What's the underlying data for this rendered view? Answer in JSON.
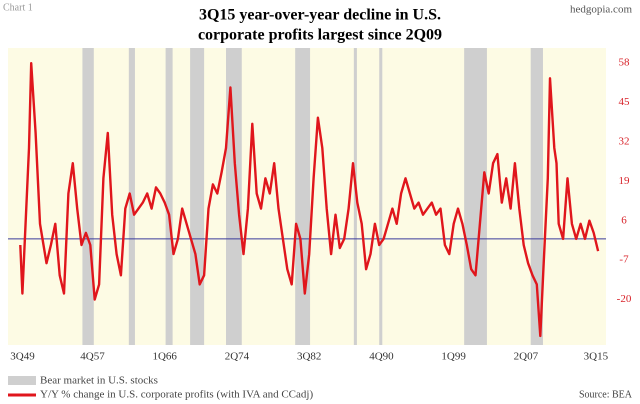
{
  "chart_data": {
    "type": "line",
    "corner_label": "Chart 1",
    "watermark": "hedgopia.com",
    "title": [
      "3Q15 year-over-year decline in U.S.",
      "corporate profits largest since 2Q09"
    ],
    "source": "Source: BEA",
    "x": [
      1949.5,
      1949.75,
      1950.5,
      1950.75,
      1951.25,
      1951.75,
      1952.5,
      1953.0,
      1953.5,
      1954.0,
      1954.5,
      1955.0,
      1955.5,
      1956.0,
      1956.5,
      1957.0,
      1957.5,
      1958.0,
      1958.5,
      1959.0,
      1959.5,
      1960.0,
      1960.5,
      1961.0,
      1961.5,
      1962.0,
      1962.5,
      1963.0,
      1963.5,
      1964.0,
      1964.5,
      1965.0,
      1965.5,
      1966.0,
      1966.5,
      1967.0,
      1967.5,
      1968.0,
      1968.5,
      1969.0,
      1969.5,
      1970.0,
      1970.5,
      1971.0,
      1971.5,
      1972.0,
      1972.5,
      1973.0,
      1973.5,
      1974.0,
      1974.5,
      1975.0,
      1975.5,
      1976.0,
      1976.5,
      1977.0,
      1977.5,
      1978.0,
      1978.5,
      1979.0,
      1979.5,
      1980.0,
      1980.5,
      1981.0,
      1981.5,
      1982.0,
      1982.5,
      1983.0,
      1983.5,
      1984.0,
      1984.5,
      1985.0,
      1985.5,
      1986.0,
      1986.5,
      1987.0,
      1987.5,
      1988.0,
      1988.5,
      1989.0,
      1989.5,
      1990.0,
      1990.5,
      1991.0,
      1991.5,
      1992.0,
      1992.5,
      1993.0,
      1993.5,
      1994.0,
      1994.5,
      1995.0,
      1995.5,
      1996.0,
      1996.5,
      1997.0,
      1997.5,
      1998.0,
      1998.5,
      1999.0,
      1999.5,
      2000.0,
      2000.5,
      2001.0,
      2001.5,
      2002.0,
      2002.5,
      2003.0,
      2003.5,
      2004.0,
      2004.5,
      2005.0,
      2005.5,
      2006.0,
      2006.5,
      2007.0,
      2007.5,
      2008.0,
      2008.5,
      2008.9,
      2009.25,
      2009.75,
      2010.0,
      2010.5,
      2010.75,
      2011.0,
      2011.5,
      2012.0,
      2012.5,
      2013.0,
      2013.5,
      2014.0,
      2014.5,
      2015.0,
      2015.5
    ],
    "series": [
      {
        "name": "Y/Y % change in U.S. corporate profits (with IVA and CCadj)",
        "color": "#e0161c",
        "values": [
          -2,
          -18,
          30,
          58,
          35,
          5,
          -8,
          -2,
          5,
          -12,
          -18,
          15,
          25,
          10,
          -2,
          2,
          -2,
          -20,
          -15,
          20,
          35,
          8,
          -5,
          -12,
          10,
          15,
          8,
          10,
          12,
          15,
          10,
          17,
          15,
          12,
          8,
          -5,
          0,
          10,
          5,
          0,
          -5,
          -15,
          -12,
          10,
          18,
          15,
          22,
          30,
          50,
          25,
          8,
          -5,
          10,
          38,
          15,
          10,
          20,
          15,
          25,
          10,
          0,
          -10,
          -15,
          5,
          0,
          -18,
          -5,
          20,
          40,
          30,
          10,
          -5,
          8,
          -3,
          0,
          10,
          25,
          12,
          5,
          -10,
          -5,
          5,
          -2,
          0,
          5,
          10,
          5,
          15,
          20,
          15,
          10,
          12,
          8,
          10,
          12,
          8,
          10,
          -2,
          -5,
          5,
          10,
          5,
          -2,
          -10,
          -12,
          5,
          22,
          15,
          25,
          28,
          12,
          20,
          10,
          25,
          10,
          -2,
          -8,
          -12,
          -15,
          -32,
          -10,
          20,
          53,
          30,
          25,
          5,
          0,
          20,
          5,
          0,
          5,
          0,
          6,
          2,
          -4
        ]
      }
    ],
    "bands": {
      "name": "Bear market in U.S. stocks",
      "color": "#cfcfcf",
      "ranges": [
        [
          1956.6,
          1957.9
        ],
        [
          1961.9,
          1962.6
        ],
        [
          1966.1,
          1966.9
        ],
        [
          1968.9,
          1970.5
        ],
        [
          1973.0,
          1974.8
        ],
        [
          1980.9,
          1982.6
        ],
        [
          1987.6,
          1987.95
        ],
        [
          1990.5,
          1990.85
        ],
        [
          2000.2,
          2002.8
        ],
        [
          2007.8,
          2009.2
        ]
      ]
    },
    "reference_line": {
      "value": 0,
      "color": "#3b3b9a"
    },
    "background": "#fdfbe4",
    "xlim": [
      1948.1,
      2016.4
    ],
    "xticks": [
      {
        "value": 1949.5,
        "label": "3Q49"
      },
      {
        "value": 1957.75,
        "label": "4Q57"
      },
      {
        "value": 1966.0,
        "label": "1Q66"
      },
      {
        "value": 1974.25,
        "label": "2Q74"
      },
      {
        "value": 1982.5,
        "label": "3Q82"
      },
      {
        "value": 1990.75,
        "label": "4Q90"
      },
      {
        "value": 1999.0,
        "label": "1Q99"
      },
      {
        "value": 2007.25,
        "label": "2Q07"
      },
      {
        "value": 2015.5,
        "label": "3Q15"
      }
    ],
    "ylim": [
      -35,
      63
    ],
    "yticks": [
      58,
      45,
      32,
      19,
      6,
      -7,
      -20
    ],
    "grid": false
  }
}
